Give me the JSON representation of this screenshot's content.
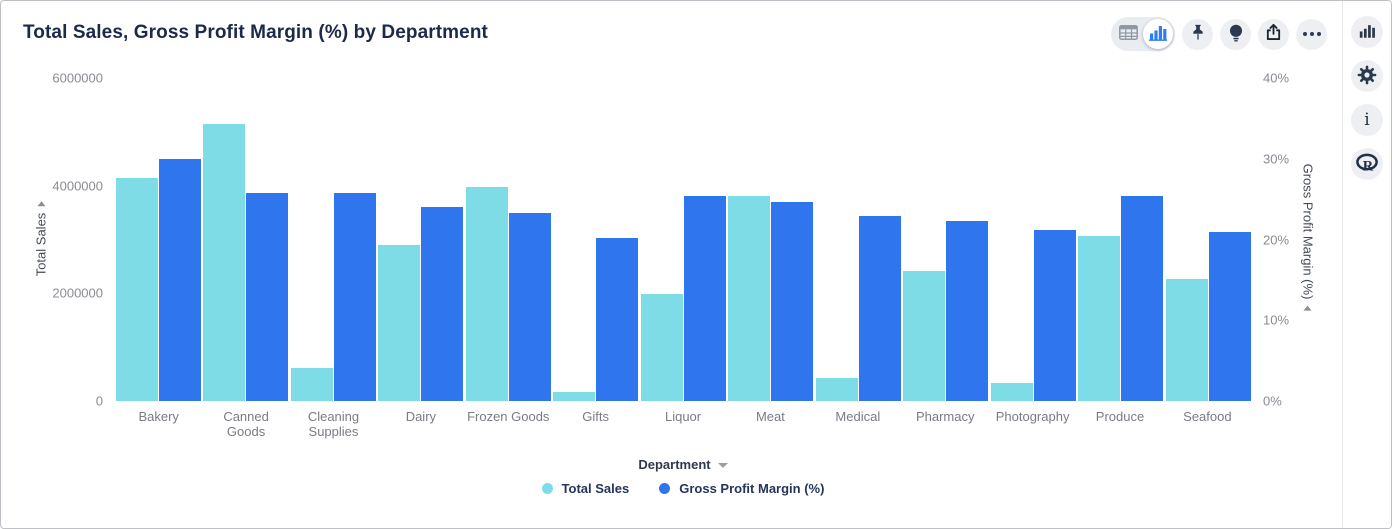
{
  "header": {
    "title": "Total Sales, Gross Profit Margin (%) by Department"
  },
  "toolbar": {
    "view_toggle": {
      "options": [
        "table",
        "chart"
      ],
      "selected": "chart"
    },
    "icons": [
      "table-icon",
      "bar-chart-icon",
      "pin-icon",
      "lightbulb-icon",
      "export-icon",
      "ellipsis-icon"
    ]
  },
  "side_rail": {
    "icons": [
      "chart-type-icon",
      "settings-gear-icon",
      "info-icon",
      "r-script-icon"
    ]
  },
  "colors": {
    "series_cyan": "#7EDCE6",
    "series_blue": "#2F76EE",
    "accent_blue": "#2f7df1",
    "icon_dark": "#2c3a50"
  },
  "chart_data": {
    "type": "bar",
    "title": "Total Sales, Gross Profit Margin (%) by Department",
    "categories": [
      "Bakery",
      "Canned Goods",
      "Cleaning Supplies",
      "Dairy",
      "Frozen Goods",
      "Gifts",
      "Liquor",
      "Meat",
      "Medical",
      "Pharmacy",
      "Photography",
      "Produce",
      "Seafood"
    ],
    "series": [
      {
        "name": "Total Sales",
        "axis": "left",
        "color": "#7EDCE6",
        "values": [
          4150000,
          5140000,
          610000,
          2900000,
          3970000,
          170000,
          1980000,
          3800000,
          430000,
          2410000,
          330000,
          3060000,
          2260000
        ]
      },
      {
        "name": "Gross Profit Margin (%)",
        "axis": "right",
        "color": "#2F76EE",
        "values": [
          30.0,
          25.8,
          25.7,
          24.0,
          23.3,
          20.2,
          25.4,
          24.6,
          22.9,
          22.3,
          21.2,
          25.4,
          20.9
        ]
      }
    ],
    "left_axis": {
      "label": "Total Sales",
      "min": 0,
      "max": 6000000,
      "ticks": [
        "6000000",
        "4000000",
        "2000000",
        "0"
      ]
    },
    "right_axis": {
      "label": "Gross Profit Margin (%)",
      "min": 0,
      "max": 40,
      "ticks": [
        "40%",
        "30%",
        "20%",
        "10%",
        "0%"
      ]
    },
    "xlabel": "Department",
    "grid": false,
    "legend_position": "bottom"
  }
}
